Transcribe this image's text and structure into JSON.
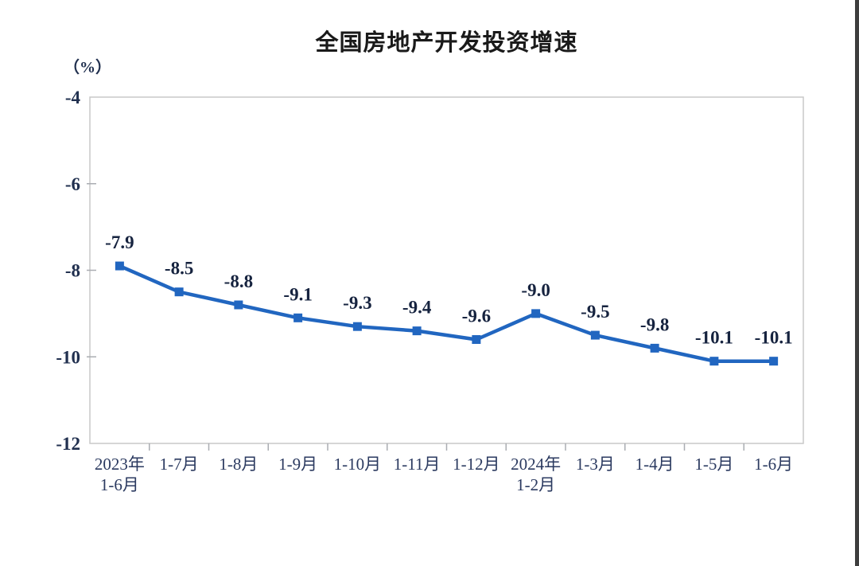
{
  "page": {
    "background": "#ffffff",
    "right_edge_color": "#3d3d3d"
  },
  "chart_data": {
    "type": "line",
    "title": "全国房地产开发投资增速",
    "unit_label": "（%）",
    "categories": [
      "2023年\n1-6月",
      "1-7月",
      "1-8月",
      "1-9月",
      "1-10月",
      "1-11月",
      "1-12月",
      "2024年\n1-2月",
      "1-3月",
      "1-4月",
      "1-5月",
      "1-6月"
    ],
    "values": [
      -7.9,
      -8.5,
      -8.8,
      -9.1,
      -9.3,
      -9.4,
      -9.6,
      -9.0,
      -9.5,
      -9.8,
      -10.1,
      -10.1
    ],
    "data_labels": [
      "-7.9",
      "-8.5",
      "-8.8",
      "-9.1",
      "-9.3",
      "-9.4",
      "-9.6",
      "-9.0",
      "-9.5",
      "-9.8",
      "-10.1",
      "-10.1"
    ],
    "xlabel": "",
    "ylabel": "（%）",
    "ylim": [
      -12,
      -4
    ],
    "yticks": [
      -4,
      -6,
      -8,
      -10,
      -12
    ],
    "grid": false,
    "legend": "none",
    "marker": "square",
    "line_color": "#2166c0",
    "marker_color": "#2166c0",
    "data_label_color": "#16233f",
    "ytick_label_color": "#21304f",
    "xtick_label_color": "#2b3a60",
    "plot_border_color": "#c8c8c8",
    "tick_mark_color": "#aaadb2"
  }
}
